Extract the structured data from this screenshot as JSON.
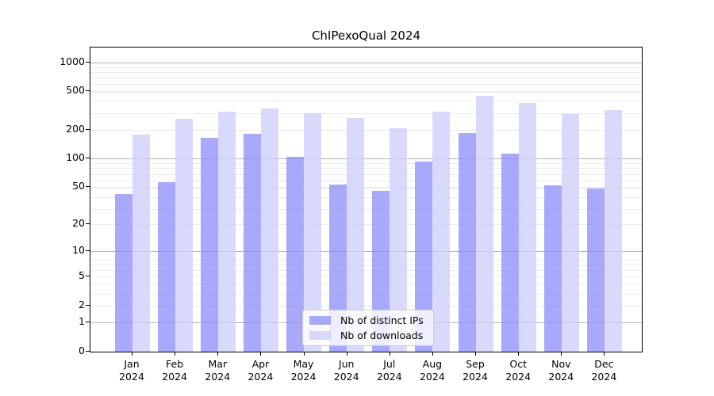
{
  "title": "ChIPexoQual 2024",
  "chart_data": {
    "type": "bar",
    "title": "ChIPexoQual 2024",
    "categories": [
      "Jan",
      "Feb",
      "Mar",
      "Apr",
      "May",
      "Jun",
      "Jul",
      "Aug",
      "Sep",
      "Oct",
      "Nov",
      "Dec"
    ],
    "category_year": "2024",
    "series": [
      {
        "name": "Nb of distinct IPs",
        "color": "#8888fa",
        "opacity": 0.72,
        "values": [
          42,
          56,
          166,
          181,
          104,
          53,
          46,
          93,
          186,
          112,
          52,
          48
        ]
      },
      {
        "name": "Nb of downloads",
        "color": "#ccccfa",
        "opacity": 0.75,
        "values": [
          176,
          260,
          310,
          330,
          298,
          263,
          207,
          308,
          452,
          381,
          292,
          320
        ]
      }
    ],
    "yscale": "log1p",
    "yticks": [
      0,
      1,
      2,
      5,
      10,
      20,
      50,
      100,
      200,
      500,
      1000
    ],
    "ylim": [
      0,
      1430
    ],
    "grid": true,
    "legend_position": "lower center",
    "axis_color": "#000000",
    "major_grid_color": "#b3b3b3",
    "minor_grid_color": "#ebebeb"
  }
}
